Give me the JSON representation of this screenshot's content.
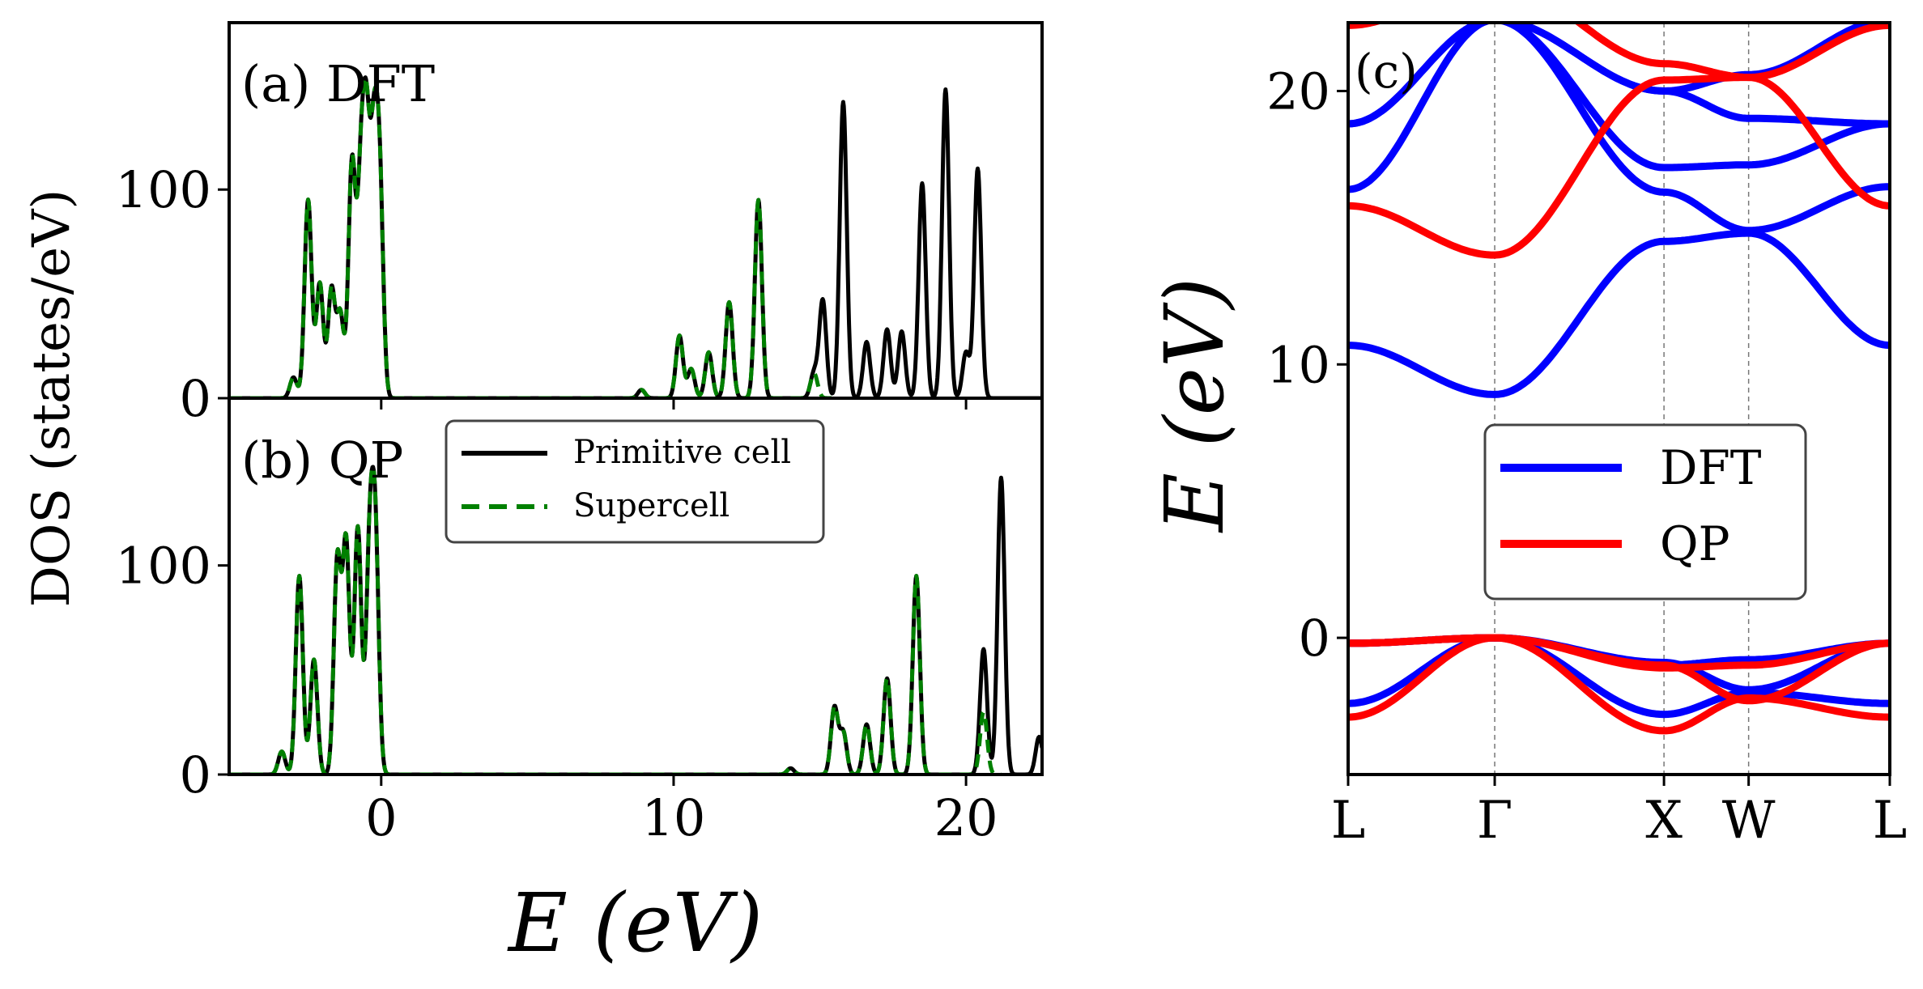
{
  "chart_data": [
    {
      "type": "line",
      "panel_label": "(a) DFT",
      "ylabel": "DOS (states/eV)",
      "xlabel": "",
      "xlim": [
        -5.2,
        22.6
      ],
      "ylim": [
        0,
        180
      ],
      "xticks": [
        0,
        10,
        20
      ],
      "xtick_labels": [
        "0",
        "10",
        "20"
      ],
      "yticks": [
        0,
        100
      ],
      "ytick_labels": [
        "0",
        "100"
      ],
      "colors": {
        "primitive": "#000000",
        "supercell": "#008000"
      },
      "series": [
        {
          "name": "Primitive cell",
          "style": "solid",
          "color": "#000000",
          "peaks": [
            [
              -3.0,
              10
            ],
            [
              -2.5,
              95
            ],
            [
              -2.1,
              55
            ],
            [
              -1.7,
              52
            ],
            [
              -1.4,
              40
            ],
            [
              -1.0,
              112
            ],
            [
              -0.7,
              95
            ],
            [
              -0.5,
              115
            ],
            [
              -0.25,
              108
            ],
            [
              -0.05,
              98
            ],
            [
              8.9,
              4
            ],
            [
              10.2,
              30
            ],
            [
              10.6,
              14
            ],
            [
              11.2,
              22
            ],
            [
              11.9,
              46
            ],
            [
              12.9,
              95
            ],
            [
              14.8,
              12
            ],
            [
              15.1,
              47
            ],
            [
              15.8,
              142
            ],
            [
              16.6,
              27
            ],
            [
              17.3,
              33
            ],
            [
              17.8,
              32
            ],
            [
              18.5,
              103
            ],
            [
              19.3,
              148
            ],
            [
              20.0,
              22
            ],
            [
              20.4,
              110
            ]
          ],
          "width": 0.12
        },
        {
          "name": "Supercell",
          "style": "dashed",
          "color": "#008000",
          "peaks": [
            [
              -3.0,
              10
            ],
            [
              -2.5,
              95
            ],
            [
              -2.1,
              55
            ],
            [
              -1.7,
              52
            ],
            [
              -1.4,
              40
            ],
            [
              -1.0,
              112
            ],
            [
              -0.7,
              95
            ],
            [
              -0.5,
              115
            ],
            [
              -0.25,
              108
            ],
            [
              -0.05,
              98
            ],
            [
              8.9,
              4
            ],
            [
              10.2,
              30
            ],
            [
              10.6,
              14
            ],
            [
              11.2,
              22
            ],
            [
              11.9,
              46
            ],
            [
              12.9,
              95
            ],
            [
              14.8,
              12
            ]
          ],
          "width": 0.12
        }
      ]
    },
    {
      "type": "line",
      "panel_label": "(b) QP",
      "xlabel": "E (eV)",
      "ylabel": "",
      "xlim": [
        -5.2,
        22.6
      ],
      "ylim": [
        0,
        180
      ],
      "xticks": [
        0,
        10,
        20
      ],
      "xtick_labels": [
        "0",
        "10",
        "20"
      ],
      "yticks": [
        0,
        100
      ],
      "ytick_labels": [
        "0",
        "100"
      ],
      "legend": {
        "placement": "upper-center",
        "entries": [
          "Primitive cell",
          "Supercell"
        ]
      },
      "series": [
        {
          "name": "Primitive cell",
          "style": "solid",
          "color": "#000000",
          "peaks": [
            [
              -3.4,
              11
            ],
            [
              -2.8,
              95
            ],
            [
              -2.3,
              55
            ],
            [
              -1.5,
              102
            ],
            [
              -1.2,
              110
            ],
            [
              -0.8,
              118
            ],
            [
              -0.4,
              100
            ],
            [
              -0.2,
              108
            ],
            [
              14.0,
              3
            ],
            [
              15.5,
              32
            ],
            [
              15.8,
              20
            ],
            [
              16.6,
              24
            ],
            [
              17.3,
              46
            ],
            [
              18.3,
              95
            ],
            [
              20.6,
              60
            ],
            [
              21.2,
              142
            ],
            [
              22.5,
              18
            ]
          ],
          "width": 0.12
        },
        {
          "name": "Supercell",
          "style": "dashed",
          "color": "#008000",
          "peaks": [
            [
              -3.4,
              11
            ],
            [
              -2.8,
              95
            ],
            [
              -2.3,
              55
            ],
            [
              -1.5,
              102
            ],
            [
              -1.2,
              110
            ],
            [
              -0.8,
              118
            ],
            [
              -0.4,
              100
            ],
            [
              -0.2,
              108
            ],
            [
              14.0,
              3
            ],
            [
              15.5,
              32
            ],
            [
              15.8,
              20
            ],
            [
              16.6,
              24
            ],
            [
              17.3,
              46
            ],
            [
              18.3,
              95
            ],
            [
              20.6,
              30
            ]
          ],
          "width": 0.12
        }
      ]
    },
    {
      "type": "line",
      "panel_label": "(c)",
      "ylabel": "E (eV)",
      "xlabel": "",
      "ylim": [
        -5,
        22.5
      ],
      "yticks": [
        0,
        10,
        20
      ],
      "ytick_labels": [
        "0",
        "10",
        "20"
      ],
      "kpoints": [
        "L",
        "Γ",
        "X",
        "W",
        "L"
      ],
      "kpoint_positions": [
        0,
        0.866,
        1.866,
        2.366,
        3.2
      ],
      "legend": {
        "placement": "center",
        "entries": [
          "DFT",
          "QP"
        ]
      },
      "series": [
        {
          "name": "DFT",
          "color": "#0000ff",
          "bands": [
            [
              [
                0,
                -2.4
              ],
              [
                0.866,
                0
              ],
              [
                1.866,
                -2.8
              ],
              [
                2.366,
                -2.0
              ],
              [
                3.2,
                -2.4
              ]
            ],
            [
              [
                0,
                -0.2
              ],
              [
                0.866,
                0
              ],
              [
                1.866,
                -1.0
              ],
              [
                2.366,
                -0.8
              ],
              [
                3.2,
                -0.2
              ]
            ],
            [
              [
                0,
                -0.2
              ],
              [
                0.866,
                0
              ],
              [
                1.866,
                -0.9
              ],
              [
                2.366,
                -1.9
              ],
              [
                3.2,
                -0.2
              ]
            ],
            [
              [
                0,
                10.7
              ],
              [
                0.866,
                8.9
              ],
              [
                1.866,
                14.5
              ],
              [
                2.366,
                14.8
              ],
              [
                3.2,
                10.7
              ]
            ],
            [
              [
                0,
                16.4
              ],
              [
                0.866,
                22.6
              ],
              [
                1.866,
                16.3
              ],
              [
                2.366,
                14.9
              ],
              [
                3.2,
                16.5
              ]
            ],
            [
              [
                0,
                18.8
              ],
              [
                0.866,
                22.6
              ],
              [
                1.866,
                17.2
              ],
              [
                2.366,
                17.3
              ],
              [
                3.2,
                18.8
              ]
            ],
            [
              [
                0,
                18.8
              ],
              [
                0.866,
                22.6
              ],
              [
                1.866,
                20.0
              ],
              [
                2.366,
                19.0
              ],
              [
                3.2,
                18.8
              ]
            ],
            [
              [
                0.866,
                22.6
              ],
              [
                1.866,
                20.0
              ],
              [
                2.366,
                20.6
              ],
              [
                3.2,
                22.6
              ]
            ]
          ]
        },
        {
          "name": "QP",
          "color": "#ff0000",
          "bands": [
            [
              [
                0,
                -2.9
              ],
              [
                0.866,
                0
              ],
              [
                1.866,
                -3.4
              ],
              [
                2.366,
                -2.2
              ],
              [
                3.2,
                -2.9
              ]
            ],
            [
              [
                0,
                -0.2
              ],
              [
                0.866,
                0
              ],
              [
                1.866,
                -1.1
              ],
              [
                2.366,
                -1.0
              ],
              [
                3.2,
                -0.2
              ]
            ],
            [
              [
                0,
                -0.2
              ],
              [
                0.866,
                0
              ],
              [
                1.866,
                -1.0
              ],
              [
                2.366,
                -2.3
              ],
              [
                3.2,
                -0.2
              ]
            ],
            [
              [
                0,
                15.8
              ],
              [
                0.866,
                14.0
              ],
              [
                1.866,
                20.4
              ],
              [
                2.366,
                20.5
              ],
              [
                3.2,
                15.8
              ]
            ],
            [
              [
                0,
                22.4
              ],
              [
                0.866,
                24.0
              ],
              [
                1.866,
                21.0
              ],
              [
                2.366,
                20.5
              ],
              [
                3.2,
                22.4
              ]
            ]
          ]
        }
      ]
    }
  ]
}
